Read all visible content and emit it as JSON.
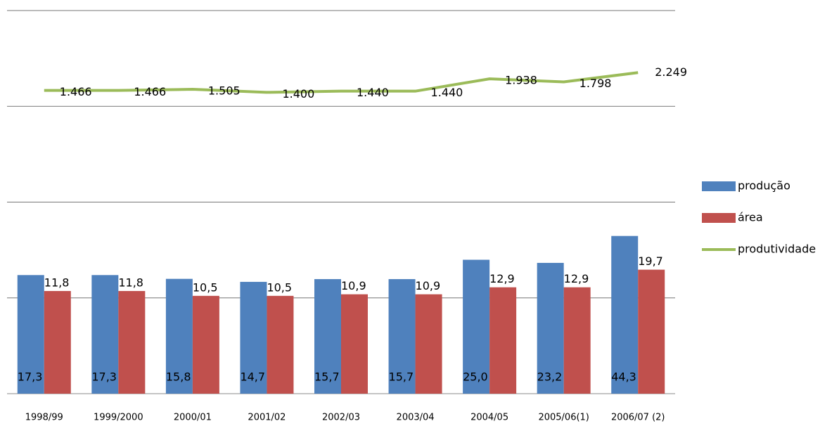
{
  "chart_data": {
    "type": "bar-line",
    "categories": [
      "1998/99",
      "1999/2000",
      "2000/01",
      "2001/02",
      "2002/03",
      "2003/04",
      "2004/05",
      "2005/06(1)",
      "2006/07 (2)"
    ],
    "series": [
      {
        "name": "produção",
        "type": "bar",
        "color": "#4f81bd",
        "values": [
          17.3,
          17.3,
          15.8,
          14.7,
          15.7,
          15.7,
          25.0,
          23.2,
          44.3
        ],
        "value_labels": [
          "17,3",
          "17,3",
          "15,8",
          "14,7",
          "15,7",
          "15,7",
          "25,0",
          "23,2",
          "44,3"
        ]
      },
      {
        "name": "área",
        "type": "bar",
        "color": "#c0504d",
        "values": [
          11.8,
          11.8,
          10.5,
          10.5,
          10.9,
          10.9,
          12.9,
          12.9,
          19.7
        ],
        "value_labels": [
          "11,8",
          "11,8",
          "10,5",
          "10,5",
          "10,9",
          "10,9",
          "12,9",
          "12,9",
          "19,7"
        ]
      },
      {
        "name": "produtividade",
        "type": "line",
        "color": "#9bbb59",
        "values": [
          1466,
          1466,
          1505,
          1400,
          1440,
          1440,
          1938,
          1798,
          2249
        ],
        "value_labels": [
          "1.466",
          "1.466",
          "1.505",
          "1.400",
          "1.440",
          "1.440",
          "1.938",
          "1.798",
          "2.249"
        ]
      }
    ],
    "log_scale": true,
    "ylim": [
      1,
      10000
    ],
    "yticks": [
      1,
      10,
      100,
      1000,
      10000
    ],
    "grid": true,
    "legend": "right"
  }
}
